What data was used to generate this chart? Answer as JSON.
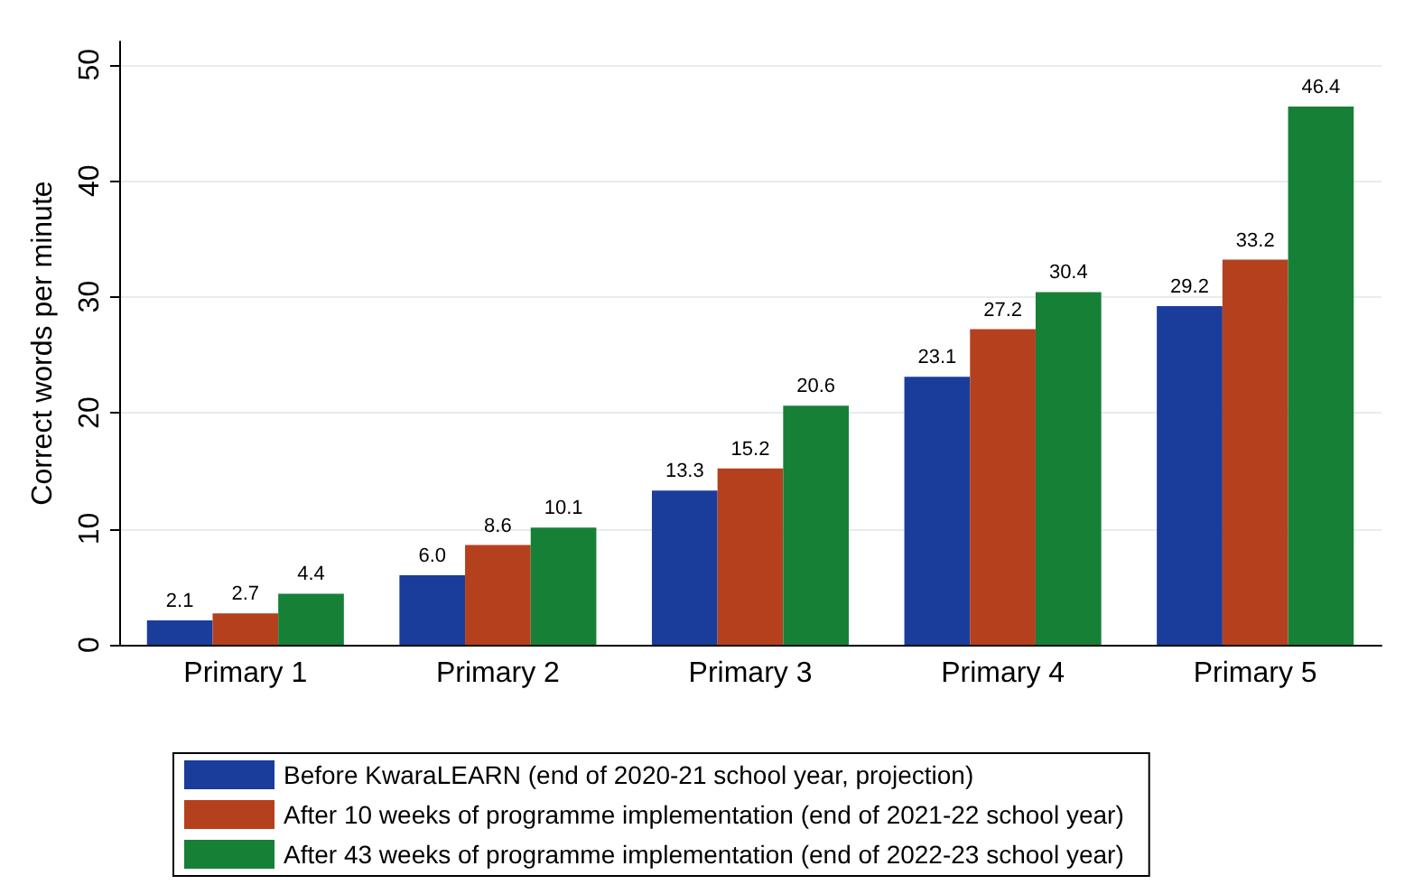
{
  "chart_data": {
    "type": "bar",
    "ylabel": "Correct words per minute",
    "categories": [
      "Primary 1",
      "Primary 2",
      "Primary 3",
      "Primary 4",
      "Primary 5"
    ],
    "series": [
      {
        "name": "Before KwaraLEARN (end of 2020-21 school year, projection)",
        "color": "#1a3d9c",
        "values": [
          2.1,
          6.0,
          13.3,
          23.1,
          29.2
        ],
        "value_labels": [
          "2.1",
          "6.0",
          "13.3",
          "23.1",
          "29.2"
        ]
      },
      {
        "name": "After 10 weeks of programme implementation (end of 2021-22 school year)",
        "color": "#b5401e",
        "values": [
          2.7,
          8.6,
          15.2,
          27.2,
          33.2
        ],
        "value_labels": [
          "2.7",
          "8.6",
          "15.2",
          "27.2",
          "33.2"
        ]
      },
      {
        "name": "After 43 weeks of programme implementation (end of 2022-23 school year)",
        "color": "#178037",
        "values": [
          4.4,
          10.1,
          20.6,
          30.4,
          46.4
        ],
        "value_labels": [
          "4.4",
          "10.1",
          "20.6",
          "30.4",
          "46.4"
        ]
      }
    ],
    "ylim": [
      0,
      52
    ],
    "yticks": [
      0,
      10,
      20,
      30,
      40,
      50
    ],
    "grid": "y",
    "legend": "bottom"
  }
}
